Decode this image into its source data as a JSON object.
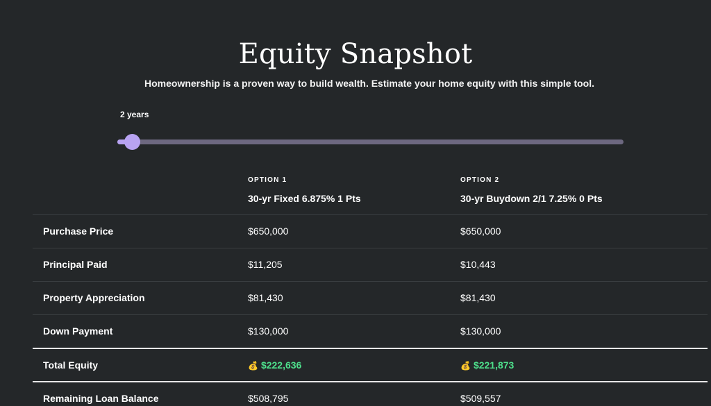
{
  "header": {
    "title": "Equity Snapshot",
    "subtitle": "Homeownership is a proven way to build wealth. Estimate your home equity with this simple tool."
  },
  "slider": {
    "label": "2 years",
    "years": 2,
    "fraction": 0.03
  },
  "options": [
    {
      "heading": "OPTION 1",
      "name": "30-yr Fixed 6.875% 1 Pts"
    },
    {
      "heading": "OPTION 2",
      "name": "30-yr Buydown 2/1 7.25% 0 Pts"
    }
  ],
  "rows": [
    {
      "label": "Purchase Price",
      "opt1": "$650,000",
      "opt2": "$650,000"
    },
    {
      "label": "Principal Paid",
      "opt1": "$11,205",
      "opt2": "$10,443"
    },
    {
      "label": "Property Appreciation",
      "opt1": "$81,430",
      "opt2": "$81,430"
    },
    {
      "label": "Down Payment",
      "opt1": "$130,000",
      "opt2": "$130,000"
    },
    {
      "label": "Total Equity",
      "opt1": "$222,636",
      "opt2": "$221,873"
    },
    {
      "label": "Remaining Loan Balance",
      "opt1": "$508,795",
      "opt2": "$509,557"
    }
  ],
  "icons": {
    "total_icon": "money-bag-icon",
    "total_glyph": "💰"
  },
  "colors": {
    "accent": "#b8a3f2",
    "track": "#6d6880",
    "positive": "#4ee08c",
    "background": "#242729"
  }
}
